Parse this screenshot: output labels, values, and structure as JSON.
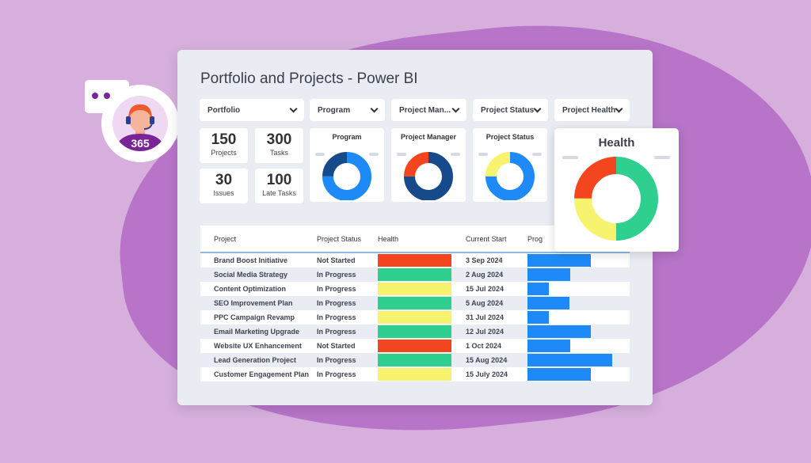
{
  "title": "Portfolio and Projects - Power BI",
  "filters": [
    {
      "label": "Portfolio"
    },
    {
      "label": "Program"
    },
    {
      "label": "Project Man..."
    },
    {
      "label": "Project Status"
    },
    {
      "label": "Project Health"
    }
  ],
  "kpis": [
    {
      "value": "150",
      "label": "Projects"
    },
    {
      "value": "300",
      "label": "Tasks"
    },
    {
      "value": "30",
      "label": "Issues"
    },
    {
      "value": "100",
      "label": "Late Tasks"
    }
  ],
  "donuts": [
    {
      "title": "Program",
      "slices": [
        {
          "color": "#1e8af7",
          "value": 75
        },
        {
          "color": "#174a8a",
          "value": 25
        }
      ]
    },
    {
      "title": "Project Manager",
      "slices": [
        {
          "color": "#174a8a",
          "value": 75
        },
        {
          "color": "#f4461e",
          "value": 25
        }
      ]
    },
    {
      "title": "Project Status",
      "slices": [
        {
          "color": "#1e8af7",
          "value": 75
        },
        {
          "color": "#f8f36e",
          "value": 25
        }
      ]
    }
  ],
  "health": {
    "title": "Health",
    "slices": [
      {
        "color": "#2ecf8f",
        "value": 50
      },
      {
        "color": "#f8f36e",
        "value": 25
      },
      {
        "color": "#f4461e",
        "value": 25
      }
    ]
  },
  "table": {
    "headers": [
      "Project",
      "Project Status",
      "Health",
      "Current Start",
      "Prog"
    ],
    "rows": [
      [
        "Brand Boost Initiative",
        "Not Started",
        "#f4461e",
        "3 Sep 2024",
        62
      ],
      [
        "Social Media Strategy",
        "In Progress",
        "#2ecf8f",
        "2 Aug 2024",
        42
      ],
      [
        "Content Optimization",
        "In Progress",
        "#f8f36e",
        "15 Jul 2024",
        21
      ],
      [
        "SEO Improvement Plan",
        "In Progress",
        "#2ecf8f",
        "5 Aug 2024",
        41
      ],
      [
        "PPC Campaign Revamp",
        "In Progress",
        "#f8f36e",
        "31 Jul 2024",
        21
      ],
      [
        "Email Marketing Upgrade",
        "In Progress",
        "#2ecf8f",
        "12 Jul 2024",
        62
      ],
      [
        "Website UX Enhancement",
        "Not Started",
        "#f4461e",
        "1 Oct 2024",
        42
      ],
      [
        "Lead Generation Project",
        "In Progress",
        "#2ecf8f",
        "15 Aug 2024",
        83
      ],
      [
        "Customer Engagement Plan",
        "In Progress",
        "#f8f36e",
        "15 July 2024",
        62
      ]
    ]
  },
  "badge": "365"
}
